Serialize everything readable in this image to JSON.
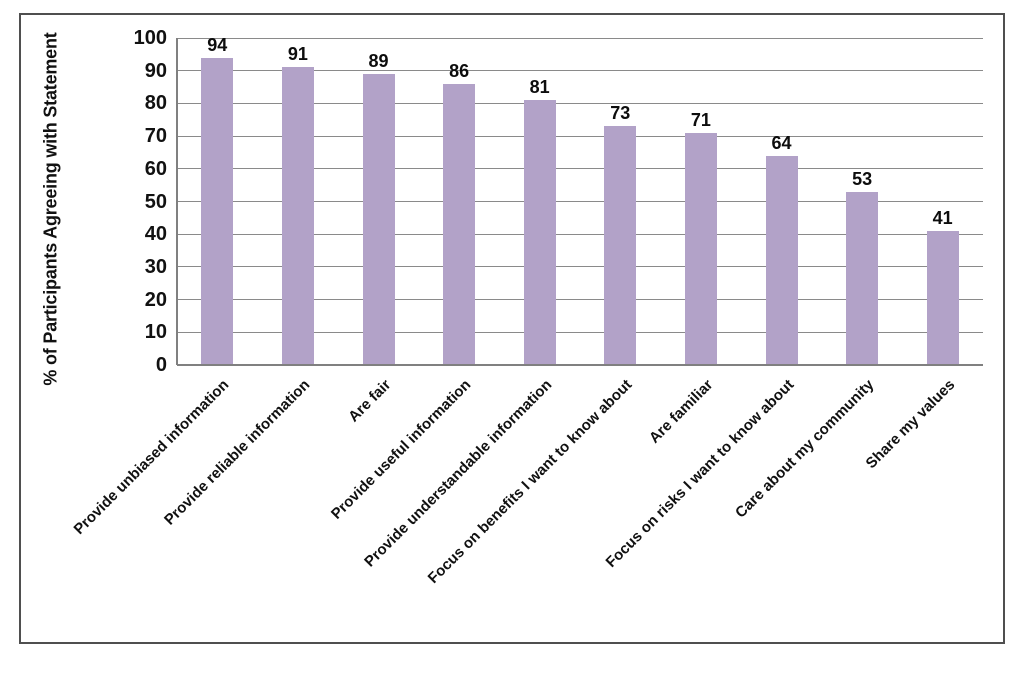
{
  "figure": {
    "background_color": "#ffffff",
    "frame_border_color": "#4f4f4f"
  },
  "chart_data": {
    "type": "bar",
    "orientation": "vertical",
    "title": "",
    "xlabel": "",
    "ylabel": "% of Participants Agreeing with Statement",
    "categories": [
      "Provide unbiased information",
      "Provide reliable information",
      "Are fair",
      "Provide useful information",
      "Provide understandable information",
      "Focus on benefits I want to know about",
      "Are familiar",
      "Focus on risks I want to know about",
      "Care about my community",
      "Share my values"
    ],
    "values": [
      94,
      91,
      89,
      86,
      81,
      73,
      71,
      64,
      53,
      41
    ],
    "ylim": [
      0,
      100
    ],
    "yticks": [
      0,
      10,
      20,
      30,
      40,
      50,
      60,
      70,
      80,
      90,
      100
    ],
    "grid": "horizontal",
    "gridline_color": "#8a8a8a",
    "axis_line_color": "#808080",
    "bar_color": "#b2a2c8",
    "data_labels_shown": true,
    "data_label_color": "#0d0d0d",
    "tick_label_color": "#111111",
    "category_label_rotation_deg": -45,
    "legend": "none"
  }
}
